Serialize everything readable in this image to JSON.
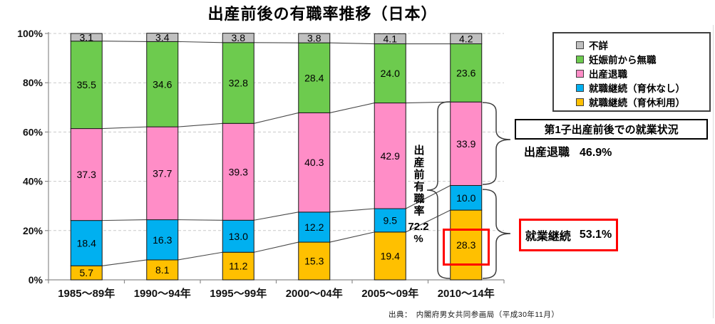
{
  "title": "出産前後の有職率推移（日本）",
  "source": "出典：　内閣府男女共同参画局（平成30年11月）",
  "y_axis": {
    "tick_labels": [
      "100%",
      "80%",
      "60%",
      "40%",
      "20%",
      "0%"
    ],
    "tick_values": [
      100,
      80,
      60,
      40,
      20,
      0
    ]
  },
  "legend": {
    "items": [
      {
        "label": "不詳",
        "color": "#C0C0C0"
      },
      {
        "label": "妊娠前から無職",
        "color": "#6DCB4E"
      },
      {
        "label": "出産退職",
        "color": "#FF8DC7"
      },
      {
        "label": "就職継続（育休なし）",
        "color": "#00B0F0"
      },
      {
        "label": "就職継続（育休利用）",
        "color": "#FFC000"
      }
    ]
  },
  "chart_data": {
    "type": "bar",
    "stacked": true,
    "title": "出産前後の有職率推移（日本）",
    "categories": [
      "1985～89年",
      "1990～94年",
      "1995～99年",
      "2000～04年",
      "2005～09年",
      "2010～14年"
    ],
    "series": [
      {
        "name": "就職継続（育休利用）",
        "color": "#FFC000",
        "values": [
          5.7,
          8.1,
          11.2,
          15.3,
          19.4,
          28.3
        ]
      },
      {
        "name": "就職継続（育休なし）",
        "color": "#00B0F0",
        "values": [
          18.4,
          16.3,
          13.0,
          12.2,
          9.5,
          10.0
        ]
      },
      {
        "name": "出産退職",
        "color": "#FF8DC7",
        "values": [
          37.3,
          37.7,
          39.3,
          40.3,
          42.9,
          33.9
        ]
      },
      {
        "name": "妊娠前から無職",
        "color": "#6DCB4E",
        "values": [
          35.5,
          34.6,
          32.8,
          28.4,
          24.0,
          23.6
        ]
      },
      {
        "name": "不詳",
        "color": "#C0C0C0",
        "values": [
          3.1,
          3.4,
          3.8,
          3.8,
          4.1,
          4.2
        ]
      }
    ],
    "ylabel": "",
    "xlabel": "",
    "ylim": [
      0,
      100
    ],
    "grid": "dashed horizontal at 20% steps",
    "legend_position": "top-right",
    "annotation_texts": [
      "出産前有職率 72.2%",
      "第1子出産前後での就業状況",
      "出産退職 46.9%",
      "就業継続 53.1%",
      "highlighted value: 28.3"
    ]
  },
  "annotations": {
    "pre_birth": {
      "vertical_label": "出産前有職率",
      "value": "72.2",
      "unit": "%"
    },
    "header_box_label": "第1子出産前後での就業状況",
    "quit": {
      "label": "出産退職",
      "value": "46.9%"
    },
    "continue": {
      "label": "就業継続",
      "value": "53.1%"
    }
  }
}
